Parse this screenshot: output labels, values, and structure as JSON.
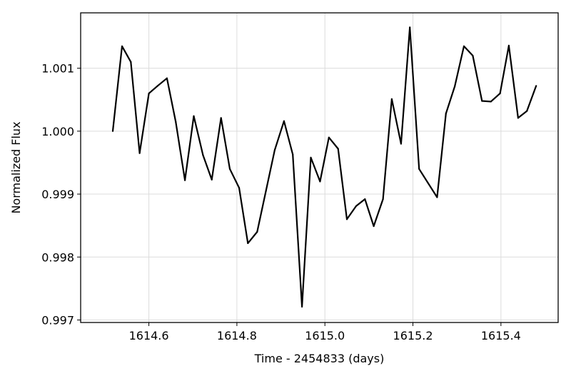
{
  "chart_data": {
    "type": "line",
    "title": "",
    "xlabel": "Time - 2454833 (days)",
    "ylabel": "Normalized Flux",
    "xlim": [
      1614.445,
      1615.53
    ],
    "ylim": [
      0.99696,
      1.00188
    ],
    "grid": true,
    "x_ticks": [
      1614.6,
      1614.8,
      1615.0,
      1615.2,
      1615.4
    ],
    "x_tick_labels": [
      "1614.6",
      "1614.8",
      "1615.0",
      "1615.2",
      "1615.4"
    ],
    "y_ticks": [
      0.997,
      0.998,
      0.999,
      1.0,
      1.001
    ],
    "y_tick_labels": [
      "0.997",
      "0.998",
      "0.999",
      "1.000",
      "1.001"
    ],
    "series": [
      {
        "color": "#000000",
        "x": [
          1614.518,
          1614.539,
          1614.559,
          1614.579,
          1614.6,
          1614.62,
          1614.641,
          1614.661,
          1614.682,
          1614.702,
          1614.723,
          1614.743,
          1614.764,
          1614.784,
          1614.805,
          1614.825,
          1614.846,
          1614.866,
          1614.886,
          1614.907,
          1614.927,
          1614.948,
          1614.968,
          1614.989,
          1615.009,
          1615.03,
          1615.05,
          1615.071,
          1615.091,
          1615.111,
          1615.132,
          1615.152,
          1615.173,
          1615.193,
          1615.214,
          1615.234,
          1615.255,
          1615.275,
          1615.295,
          1615.316,
          1615.336,
          1615.357,
          1615.377,
          1615.398,
          1615.418,
          1615.439,
          1615.459,
          1615.48
        ],
        "y": [
          1.0,
          1.00135,
          1.0011,
          0.99965,
          1.0006,
          1.00072,
          1.00084,
          1.00015,
          0.99922,
          1.00024,
          0.99962,
          0.99923,
          1.00021,
          0.9994,
          0.9991,
          0.99822,
          0.9984,
          0.99905,
          0.9997,
          1.00016,
          0.99963,
          0.99721,
          0.99958,
          0.9992,
          0.9999,
          0.99972,
          0.9986,
          0.99881,
          0.99892,
          0.99849,
          0.99892,
          1.00051,
          0.9998,
          1.00165,
          0.9994,
          0.99918,
          0.99895,
          1.00028,
          1.00071,
          1.00135,
          1.0012,
          1.00048,
          1.00047,
          1.0006,
          1.00136,
          1.00021,
          1.00032,
          1.00072
        ]
      }
    ]
  }
}
